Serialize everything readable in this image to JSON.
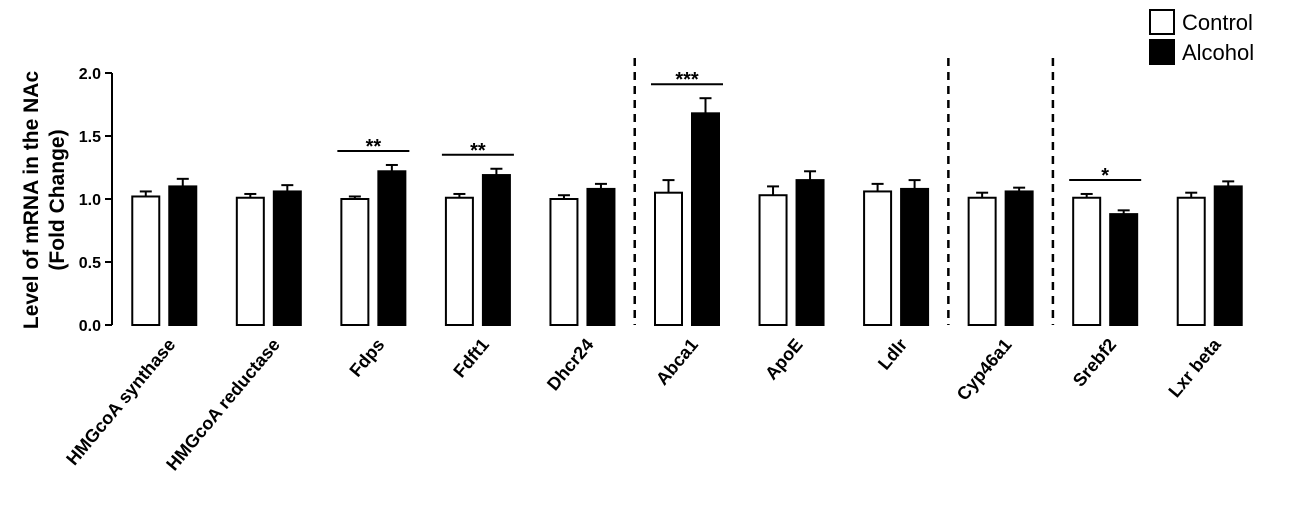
{
  "chart_data": {
    "type": "bar",
    "ylabel": [
      "Level of mRNA in the NAc",
      "(Fold Change)"
    ],
    "categories": [
      "HMGcoA synthase",
      "HMGcoA reductase",
      "Fdps",
      "Fdft1",
      "Dhcr24",
      "Abca1",
      "ApoE",
      "Ldlr",
      "Cyp46a1",
      "Srebf2",
      "Lxr beta"
    ],
    "series": [
      {
        "name": "Control",
        "color": "#ffffff",
        "values": [
          1.02,
          1.01,
          1.0,
          1.01,
          1.0,
          1.05,
          1.03,
          1.06,
          1.01,
          1.01,
          1.01
        ],
        "errors": [
          0.04,
          0.03,
          0.02,
          0.03,
          0.03,
          0.1,
          0.07,
          0.06,
          0.04,
          0.03,
          0.04
        ]
      },
      {
        "name": "Alcohol",
        "color": "#000000",
        "values": [
          1.1,
          1.06,
          1.22,
          1.19,
          1.08,
          1.68,
          1.15,
          1.08,
          1.06,
          0.88,
          1.1
        ],
        "errors": [
          0.06,
          0.05,
          0.05,
          0.05,
          0.04,
          0.12,
          0.07,
          0.07,
          0.03,
          0.03,
          0.04
        ]
      }
    ],
    "ylim": [
      0,
      2
    ],
    "yticks": [
      {
        "value": 0,
        "label": "0.0"
      },
      {
        "value": 0.5,
        "label": "0.5"
      },
      {
        "value": 1,
        "label": "1.0"
      },
      {
        "value": 1.5,
        "label": "1.5"
      },
      {
        "value": 2,
        "label": "2.0"
      }
    ],
    "annotations": [
      {
        "category": "Fdps",
        "label": "**"
      },
      {
        "category": "Fdft1",
        "label": "**"
      },
      {
        "category": "Abca1",
        "label": "***"
      },
      {
        "category": "Srebf2",
        "label": "*"
      }
    ],
    "separators_after": [
      "Dhcr24",
      "Ldlr",
      "Cyp46a1"
    ],
    "legend": "top-right"
  }
}
